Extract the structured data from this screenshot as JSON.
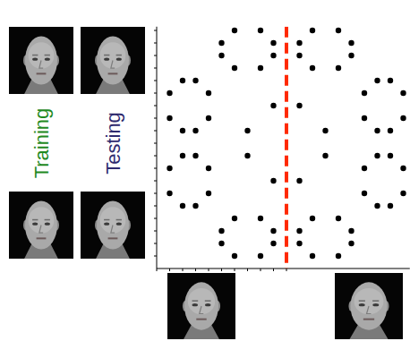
{
  "chart_data": {
    "type": "scatter",
    "x": [
      6,
      8,
      12,
      14,
      5,
      9,
      11,
      15,
      5,
      9,
      11,
      15,
      6,
      8,
      12,
      14,
      2,
      3,
      1,
      4,
      1,
      4,
      2,
      3,
      2,
      3,
      1,
      4,
      1,
      4,
      2,
      3,
      17,
      18,
      16,
      19,
      16,
      19,
      17,
      18,
      17,
      18,
      16,
      19,
      16,
      19,
      17,
      18,
      6,
      8,
      12,
      14,
      5,
      9,
      11,
      15,
      5,
      9,
      11,
      15,
      6,
      8,
      12,
      14,
      9,
      11,
      7,
      13,
      7,
      13,
      9,
      11
    ],
    "values": [
      19,
      19,
      19,
      19,
      18,
      18,
      18,
      18,
      17,
      17,
      17,
      17,
      16,
      16,
      16,
      16,
      15,
      15,
      14,
      14,
      12,
      12,
      11,
      11,
      9,
      9,
      8,
      8,
      6,
      6,
      5,
      5,
      15,
      15,
      14,
      14,
      12,
      12,
      11,
      11,
      9,
      9,
      8,
      8,
      6,
      6,
      5,
      5,
      4,
      4,
      4,
      4,
      3,
      3,
      3,
      3,
      2,
      2,
      2,
      2,
      1,
      1,
      1,
      1,
      13,
      13,
      11,
      11,
      9,
      9,
      7,
      7
    ],
    "color": "#000000",
    "marker": "circle",
    "xlim": [
      0,
      19.5
    ],
    "ylim": [
      0,
      19.3
    ],
    "xticks": [
      0,
      1,
      2,
      3,
      4,
      5,
      6,
      7,
      8,
      9,
      10
    ],
    "yticks": [
      1,
      2,
      3,
      4,
      5,
      6,
      7,
      8,
      9,
      10,
      11,
      12,
      13,
      14,
      15,
      16,
      17,
      18,
      19
    ],
    "tick_labels": false,
    "grid": false,
    "reference_line": {
      "x": 10,
      "color": "#ff2a00",
      "line_style": "dashed"
    },
    "annotations": [
      {
        "text": "Training",
        "color": "#1f8a1f"
      },
      {
        "text": "Testing",
        "color": "#2e2a6e"
      }
    ]
  }
}
